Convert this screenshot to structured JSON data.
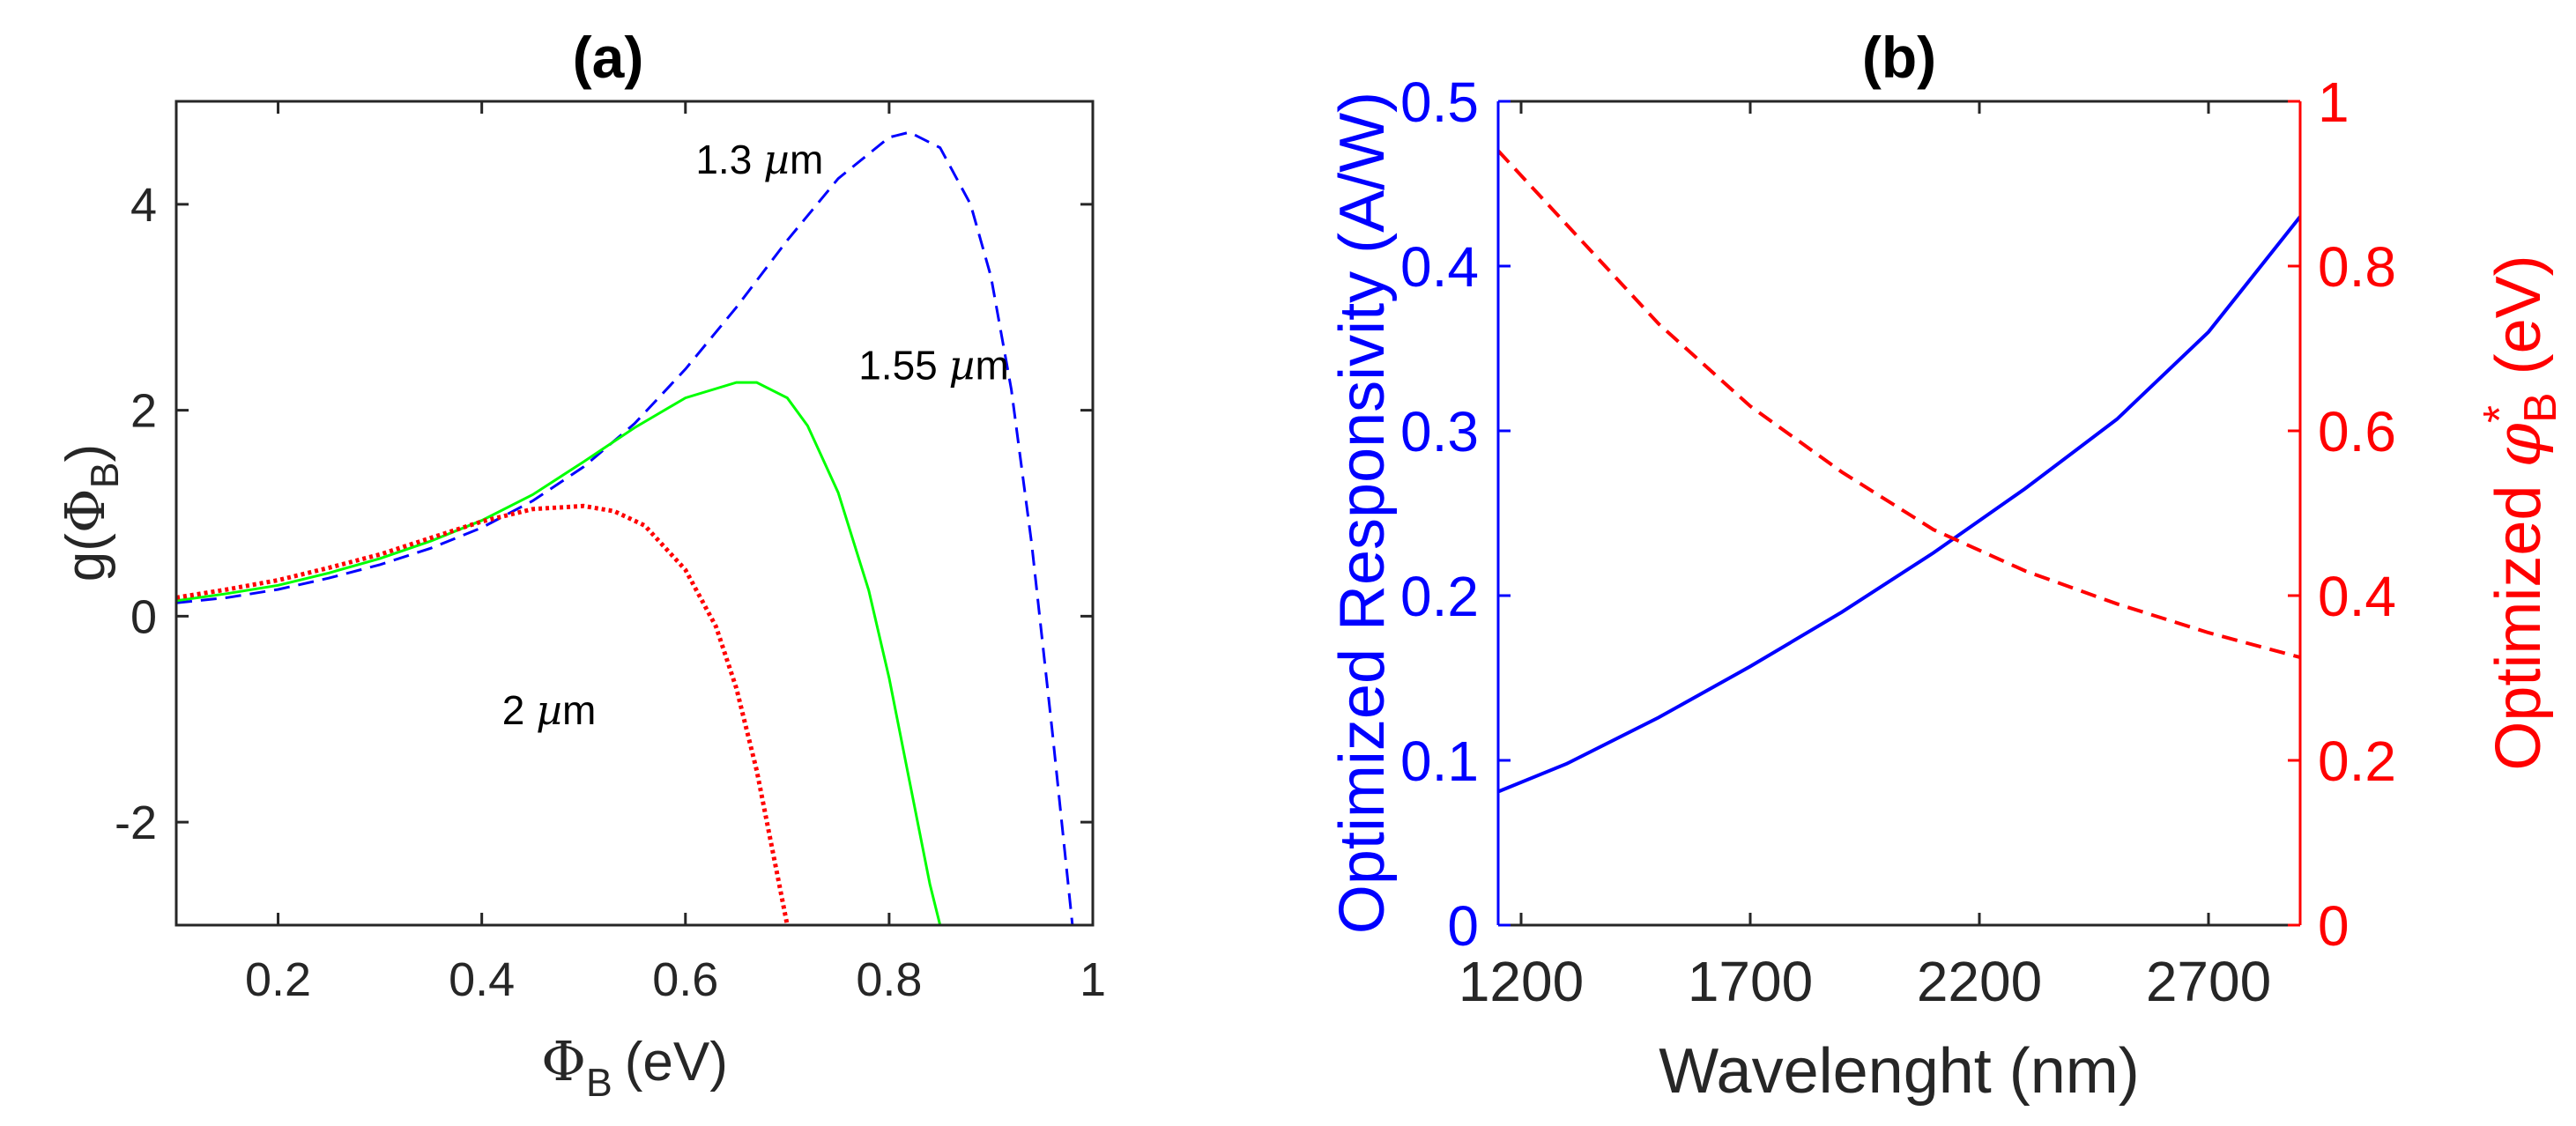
{
  "chart_data": [
    {
      "panel": "a",
      "type": "line",
      "title": "(a)",
      "xlabel": {
        "symbol": "Φ",
        "subscript": "B",
        "unit": "(eV)"
      },
      "ylabel": {
        "prefix": "g(",
        "symbol": "Φ",
        "subscript": "B",
        "suffix": ")"
      },
      "xlim": [
        0.1,
        1.0
      ],
      "ylim": [
        -3,
        5
      ],
      "xticks": [
        0.2,
        0.4,
        0.6,
        0.8,
        1.0
      ],
      "xtick_labels": [
        "0.2",
        "0.4",
        "0.6",
        "0.8",
        "1"
      ],
      "yticks": [
        -2,
        0,
        2,
        4
      ],
      "ytick_labels": [
        "-2",
        "0",
        "2",
        "4"
      ],
      "grid": false,
      "series": [
        {
          "name": "1.3 µm",
          "label_num": "1.3 ",
          "label_mu": "µ",
          "label_unit": "m",
          "color": "#0000ff",
          "style": "dashed",
          "label_at": [
            0.61,
            4.3
          ],
          "x": [
            0.1,
            0.15,
            0.2,
            0.25,
            0.3,
            0.35,
            0.4,
            0.45,
            0.5,
            0.55,
            0.6,
            0.65,
            0.7,
            0.75,
            0.8,
            0.82,
            0.85,
            0.88,
            0.9,
            0.92,
            0.94,
            0.96,
            0.98
          ],
          "y": [
            0.13,
            0.18,
            0.26,
            0.37,
            0.5,
            0.66,
            0.86,
            1.12,
            1.45,
            1.87,
            2.4,
            3.0,
            3.65,
            4.25,
            4.65,
            4.7,
            4.55,
            4.0,
            3.3,
            2.2,
            0.7,
            -1.1,
            -3.0
          ]
        },
        {
          "name": "1.55 µm",
          "label_num": "1.55 ",
          "label_mu": "µ",
          "label_unit": "m",
          "color": "#00ff00",
          "style": "solid",
          "label_at": [
            0.77,
            2.3
          ],
          "x": [
            0.1,
            0.15,
            0.2,
            0.25,
            0.3,
            0.35,
            0.4,
            0.45,
            0.5,
            0.55,
            0.6,
            0.65,
            0.67,
            0.7,
            0.72,
            0.75,
            0.78,
            0.8,
            0.82,
            0.84,
            0.85
          ],
          "y": [
            0.15,
            0.22,
            0.3,
            0.42,
            0.56,
            0.73,
            0.93,
            1.18,
            1.5,
            1.83,
            2.12,
            2.27,
            2.27,
            2.12,
            1.85,
            1.2,
            0.25,
            -0.6,
            -1.6,
            -2.6,
            -3.0
          ]
        },
        {
          "name": "2 µm",
          "label_num": "2 ",
          "label_mu": "µ",
          "label_unit": "m",
          "color": "#ff0000",
          "style": "dotted",
          "label_at": [
            0.42,
            -1.05
          ],
          "x": [
            0.1,
            0.15,
            0.2,
            0.25,
            0.3,
            0.35,
            0.4,
            0.45,
            0.5,
            0.53,
            0.56,
            0.6,
            0.63,
            0.65,
            0.67,
            0.69,
            0.7
          ],
          "y": [
            0.18,
            0.26,
            0.35,
            0.47,
            0.6,
            0.76,
            0.92,
            1.04,
            1.07,
            1.02,
            0.88,
            0.45,
            -0.1,
            -0.7,
            -1.5,
            -2.5,
            -3.0
          ]
        }
      ]
    },
    {
      "panel": "b",
      "type": "line",
      "title": "(b)",
      "xlabel": "Wavelenght (nm)",
      "ylabel_left": "Optimized Responsivity (A/W)",
      "ylabel_right": {
        "prefix": "Optimized ",
        "symbol": "φ",
        "superscript": "*",
        "subscript": "B",
        "suffix": " (eV)"
      },
      "xlim": [
        1150,
        2900
      ],
      "ylim_left": [
        0,
        0.5
      ],
      "ylim_right": [
        0,
        1
      ],
      "xticks": [
        1200,
        1700,
        2200,
        2700
      ],
      "xtick_labels": [
        "1200",
        "1700",
        "2200",
        "2700"
      ],
      "yticks_left": [
        0,
        0.1,
        0.2,
        0.3,
        0.4,
        0.5
      ],
      "ytick_labels_left": [
        "0",
        "0.1",
        "0.2",
        "0.3",
        "0.4",
        "0.5"
      ],
      "yticks_right": [
        0,
        0.2,
        0.4,
        0.6,
        0.8,
        1
      ],
      "ytick_labels_right": [
        "0",
        "0.2",
        "0.4",
        "0.6",
        "0.8",
        "1"
      ],
      "grid": false,
      "left_color": "#0000ff",
      "right_color": "#ff0000",
      "series": [
        {
          "name": "Optimized Responsivity",
          "axis": "left",
          "color": "#0000ff",
          "style": "solid",
          "x": [
            1150,
            1300,
            1500,
            1700,
            1900,
            2100,
            2300,
            2500,
            2700,
            2900
          ],
          "y": [
            0.081,
            0.098,
            0.126,
            0.157,
            0.19,
            0.226,
            0.265,
            0.307,
            0.36,
            0.43
          ]
        },
        {
          "name": "Optimized phi_B*",
          "axis": "right",
          "color": "#ff0000",
          "style": "dashed",
          "x": [
            1150,
            1300,
            1500,
            1700,
            1900,
            2100,
            2300,
            2500,
            2700,
            2900
          ],
          "y": [
            0.94,
            0.85,
            0.73,
            0.63,
            0.55,
            0.48,
            0.43,
            0.39,
            0.355,
            0.325
          ]
        }
      ]
    }
  ]
}
